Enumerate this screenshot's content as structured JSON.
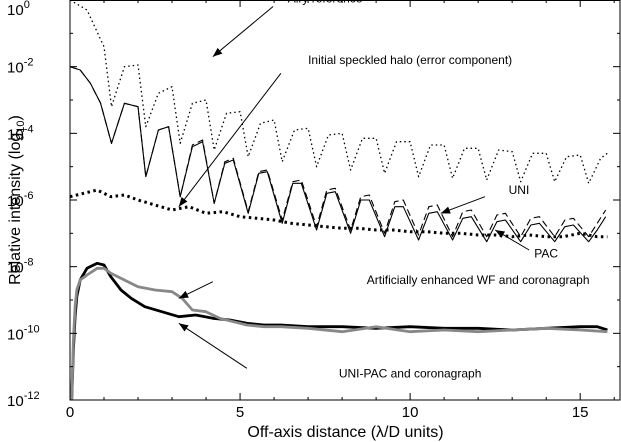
{
  "chart_data": {
    "type": "line",
    "title": "",
    "xlabel": "Off-axis distance (λ/D units)",
    "ylabel": "Relative intensity (log10)",
    "ylabel_main": "Relative intensity (log",
    "ylabel_sub": "10",
    "ylabel_close": ")",
    "xlim": [
      0,
      16.2
    ],
    "ylim": [
      1e-12,
      1
    ],
    "yscale": "log",
    "grid": false,
    "legend": "none",
    "xticks": [
      {
        "value": 0,
        "label": "0"
      },
      {
        "value": 5,
        "label": "5"
      },
      {
        "value": 10,
        "label": "10"
      },
      {
        "value": 15,
        "label": "15"
      }
    ],
    "yticks": [
      {
        "exp": 0,
        "base": "10",
        "sup": "0"
      },
      {
        "exp": -2,
        "base": "10",
        "sup": "-2"
      },
      {
        "exp": -4,
        "base": "10",
        "sup": "-4"
      },
      {
        "exp": -6,
        "base": "10",
        "sup": "-6"
      },
      {
        "exp": -8,
        "base": "10",
        "sup": "-8"
      },
      {
        "exp": -10,
        "base": "10",
        "sup": "-10"
      },
      {
        "exp": -12,
        "base": "10",
        "sup": "-12"
      }
    ],
    "annotations": [
      {
        "text": "Airy reference",
        "tx": 7.5,
        "ty": 0.045,
        "ax": 4.2,
        "ay": -1.7
      },
      {
        "text": "Initial speckled halo (error component)",
        "tx": 10.0,
        "ty": -1.8,
        "ax": 6.2,
        "ay": -2.2,
        "ax2": 3.2,
        "ay2": -6.2
      },
      {
        "text": "UNI",
        "tx": 13.2,
        "ty": -5.7,
        "ax": 12.2,
        "ay": -5.9,
        "ax2": 10.9,
        "ay2": -6.4
      },
      {
        "text": "PAC",
        "tx": 14.0,
        "ty": -7.6,
        "ax": 13.5,
        "ay": -7.5,
        "ax2": 12.5,
        "ay2": -6.9
      },
      {
        "text": "Artificially enhanced WF and coronagraph",
        "tx": 12.0,
        "ty": -8.4,
        "ax": 4.2,
        "ay": -8.45,
        "ax2": 3.2,
        "ay2": -8.95
      },
      {
        "text": "UNI-PAC and coronagraph",
        "tx": 10.0,
        "ty": -11.2,
        "ax": 5.2,
        "ay": -11.05,
        "ax2": 3.2,
        "ay2": -9.7
      }
    ],
    "series": [
      {
        "style": "dotted-thin",
        "x": [
          0,
          0.5,
          1.0,
          1.22,
          1.6,
          2.0,
          2.23,
          2.6,
          3.0,
          3.24,
          3.6,
          4.0,
          4.24,
          4.6,
          5.0,
          5.24,
          5.6,
          6.0,
          6.24,
          6.6,
          7.0,
          7.25,
          7.6,
          8.0,
          8.25,
          8.6,
          9.0,
          9.25,
          9.6,
          10.0,
          10.25,
          10.6,
          11.0,
          11.25,
          11.6,
          12.0,
          12.25,
          12.6,
          13.0,
          13.25,
          13.6,
          14.0,
          14.25,
          14.6,
          15.0,
          15.25,
          15.6,
          15.8
        ],
        "y": [
          0,
          -0.3,
          -1.4,
          -3.2,
          -2.0,
          -1.95,
          -3.8,
          -2.8,
          -2.6,
          -4.3,
          -3.1,
          -3.0,
          -4.5,
          -3.4,
          -3.35,
          -4.7,
          -3.7,
          -3.6,
          -4.85,
          -3.9,
          -3.85,
          -5.0,
          -4.05,
          -4.0,
          -5.1,
          -4.15,
          -4.15,
          -5.2,
          -4.25,
          -4.25,
          -5.3,
          -4.35,
          -4.35,
          -5.35,
          -4.45,
          -4.45,
          -5.4,
          -4.5,
          -4.55,
          -5.45,
          -4.6,
          -4.6,
          -5.45,
          -4.7,
          -4.65,
          -5.5,
          -4.75,
          -4.6
        ]
      },
      {
        "style": "solid-thin",
        "x": [
          0,
          0.3,
          0.6,
          0.9,
          1.22,
          1.6,
          2.0,
          2.23,
          2.6,
          2.9,
          3.24,
          3.6,
          3.9,
          4.24,
          4.55,
          4.8,
          5.24,
          5.55,
          5.8,
          6.24,
          6.55,
          6.8,
          7.25,
          7.55,
          7.8,
          8.25,
          8.55,
          8.8,
          9.25,
          9.55,
          9.8,
          10.25,
          10.55,
          10.8,
          11.25,
          11.55,
          11.8,
          12.25,
          12.55,
          12.8,
          13.25,
          13.55,
          13.8,
          14.25,
          14.55,
          14.8,
          15.25,
          15.5,
          15.75
        ],
        "y": [
          -2.0,
          -2.1,
          -2.5,
          -3.1,
          -4.3,
          -3.1,
          -3.2,
          -5.3,
          -3.9,
          -3.8,
          -5.9,
          -4.4,
          -4.25,
          -6.1,
          -4.9,
          -4.8,
          -6.4,
          -5.2,
          -5.15,
          -6.7,
          -5.5,
          -5.5,
          -6.9,
          -5.8,
          -5.75,
          -7.0,
          -6.0,
          -6.0,
          -7.1,
          -6.2,
          -6.2,
          -7.2,
          -6.4,
          -6.35,
          -7.2,
          -6.55,
          -6.5,
          -7.25,
          -6.65,
          -6.6,
          -7.25,
          -6.75,
          -6.7,
          -7.25,
          -6.8,
          -6.75,
          -7.25,
          -6.9,
          -6.5
        ]
      },
      {
        "style": "dashed-thin",
        "x": [
          0,
          0.3,
          0.6,
          0.9,
          1.22,
          1.6,
          2.0,
          2.23,
          2.6,
          2.9,
          3.24,
          3.6,
          3.9,
          4.24,
          4.55,
          4.8,
          5.24,
          5.55,
          5.8,
          6.24,
          6.55,
          6.8,
          7.25,
          7.55,
          7.8,
          8.25,
          8.55,
          8.8,
          9.25,
          9.55,
          9.8,
          10.25,
          10.55,
          10.8,
          11.25,
          11.55,
          11.8,
          12.25,
          12.55,
          12.8,
          13.25,
          13.55,
          13.8,
          14.25,
          14.55,
          14.8,
          15.25,
          15.5,
          15.75
        ],
        "y": [
          -2.0,
          -2.1,
          -2.5,
          -3.1,
          -4.3,
          -3.1,
          -3.2,
          -5.3,
          -3.9,
          -3.8,
          -5.9,
          -4.35,
          -4.2,
          -6.1,
          -4.85,
          -4.75,
          -6.35,
          -5.15,
          -5.1,
          -6.6,
          -5.45,
          -5.4,
          -6.8,
          -5.7,
          -5.65,
          -6.9,
          -5.9,
          -5.85,
          -7.0,
          -6.05,
          -6.0,
          -7.05,
          -6.2,
          -6.15,
          -7.1,
          -6.35,
          -6.3,
          -7.1,
          -6.45,
          -6.4,
          -7.1,
          -6.55,
          -6.5,
          -7.1,
          -6.6,
          -6.55,
          -7.1,
          -6.7,
          -6.3
        ]
      },
      {
        "style": "dotted-thick",
        "x": [
          0,
          0.4,
          0.8,
          1.2,
          1.6,
          2.0,
          2.5,
          3.0,
          3.5,
          4.0,
          4.5,
          5.0,
          5.5,
          6.0,
          6.5,
          7.0,
          7.5,
          8.0,
          8.5,
          9.0,
          9.5,
          10.0,
          10.5,
          11.0,
          11.5,
          12.0,
          12.5,
          13.0,
          13.5,
          14.0,
          14.5,
          15.0,
          15.5,
          15.8
        ],
        "y": [
          -5.9,
          -5.8,
          -5.7,
          -5.9,
          -5.85,
          -6.0,
          -6.15,
          -6.3,
          -6.2,
          -6.4,
          -6.35,
          -6.5,
          -6.55,
          -6.6,
          -6.7,
          -6.75,
          -6.8,
          -6.85,
          -6.85,
          -6.9,
          -6.9,
          -6.95,
          -6.95,
          -7.0,
          -7.0,
          -7.05,
          -7.05,
          -7.1,
          -7.05,
          -7.1,
          -7.1,
          -7.0,
          -7.1,
          -7.1
        ]
      },
      {
        "style": "solid-thick-black",
        "x": [
          0.05,
          0.1,
          0.15,
          0.2,
          0.3,
          0.5,
          0.8,
          1.0,
          1.2,
          1.5,
          1.8,
          2.2,
          2.7,
          3.2,
          3.7,
          4.2,
          4.7,
          5.2,
          5.7,
          6.2,
          7.0,
          8.0,
          9.0,
          10.0,
          11.0,
          12.0,
          13.0,
          14.0,
          15.0,
          15.5,
          15.8
        ],
        "y": [
          -12.0,
          -10.5,
          -9.5,
          -8.9,
          -8.4,
          -8.05,
          -7.9,
          -7.95,
          -8.3,
          -8.7,
          -8.95,
          -9.2,
          -9.35,
          -9.5,
          -9.45,
          -9.55,
          -9.6,
          -9.7,
          -9.75,
          -9.75,
          -9.8,
          -9.8,
          -9.85,
          -9.8,
          -9.85,
          -9.85,
          -9.9,
          -9.85,
          -9.8,
          -9.8,
          -9.9
        ]
      },
      {
        "style": "solid-thick-gray",
        "x": [
          0.05,
          0.1,
          0.15,
          0.2,
          0.3,
          0.5,
          0.8,
          1.0,
          1.2,
          1.6,
          2.0,
          2.5,
          3.0,
          3.3,
          3.6,
          4.0,
          4.4,
          4.8,
          5.2,
          5.7,
          6.2,
          7.0,
          8.0,
          9.0,
          10.0,
          11.0,
          12.0,
          13.0,
          14.0,
          15.0,
          15.8
        ],
        "y": [
          -12.0,
          -10.2,
          -9.2,
          -8.7,
          -8.4,
          -8.25,
          -8.05,
          -8.05,
          -8.2,
          -8.4,
          -8.6,
          -8.7,
          -8.75,
          -8.95,
          -9.3,
          -9.35,
          -9.55,
          -9.65,
          -9.75,
          -9.8,
          -9.8,
          -9.85,
          -9.95,
          -9.8,
          -9.95,
          -9.9,
          -9.95,
          -9.9,
          -9.85,
          -9.9,
          -9.95
        ]
      }
    ]
  }
}
